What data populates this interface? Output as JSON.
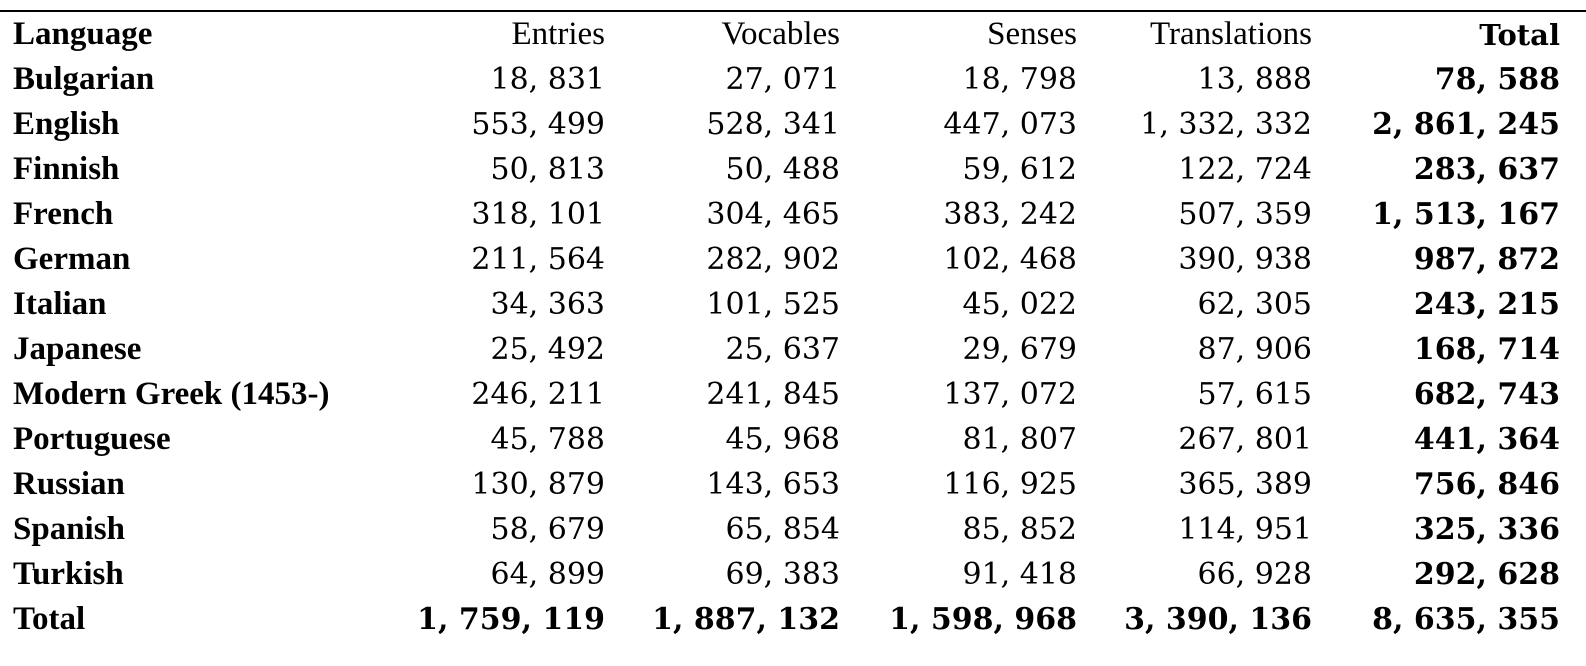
{
  "table": {
    "headers": [
      "Language",
      "Entries",
      "Vocables",
      "Senses",
      "Translations",
      "Total"
    ],
    "rows": [
      {
        "language": "Bulgarian",
        "entries": "18, 831",
        "vocables": "27, 071",
        "senses": "18, 798",
        "translations": "13, 888",
        "total": "78, 588"
      },
      {
        "language": "English",
        "entries": "553, 499",
        "vocables": "528, 341",
        "senses": "447, 073",
        "translations": "1, 332, 332",
        "total": "2, 861, 245"
      },
      {
        "language": "Finnish",
        "entries": "50, 813",
        "vocables": "50, 488",
        "senses": "59, 612",
        "translations": "122, 724",
        "total": "283, 637"
      },
      {
        "language": "French",
        "entries": "318, 101",
        "vocables": "304, 465",
        "senses": "383, 242",
        "translations": "507, 359",
        "total": "1, 513, 167"
      },
      {
        "language": "German",
        "entries": "211, 564",
        "vocables": "282, 902",
        "senses": "102, 468",
        "translations": "390, 938",
        "total": "987, 872"
      },
      {
        "language": "Italian",
        "entries": "34, 363",
        "vocables": "101, 525",
        "senses": "45, 022",
        "translations": "62, 305",
        "total": "243, 215"
      },
      {
        "language": "Japanese",
        "entries": "25, 492",
        "vocables": "25, 637",
        "senses": "29, 679",
        "translations": "87, 906",
        "total": "168, 714"
      },
      {
        "language": "Modern Greek (1453-)",
        "entries": "246, 211",
        "vocables": "241, 845",
        "senses": "137, 072",
        "translations": "57, 615",
        "total": "682, 743"
      },
      {
        "language": "Portuguese",
        "entries": "45, 788",
        "vocables": "45, 968",
        "senses": "81, 807",
        "translations": "267, 801",
        "total": "441, 364"
      },
      {
        "language": "Russian",
        "entries": "130, 879",
        "vocables": "143, 653",
        "senses": "116, 925",
        "translations": "365, 389",
        "total": "756, 846"
      },
      {
        "language": "Spanish",
        "entries": "58, 679",
        "vocables": "65, 854",
        "senses": "85, 852",
        "translations": "114, 951",
        "total": "325, 336"
      },
      {
        "language": "Turkish",
        "entries": "64, 899",
        "vocables": "69, 383",
        "senses": "91, 418",
        "translations": "66, 928",
        "total": "292, 628"
      }
    ],
    "total_row": {
      "language": "Total",
      "entries": "1, 759, 119",
      "vocables": "1, 887, 132",
      "senses": "1, 598, 968",
      "translations": "3, 390, 136",
      "total": "8, 635, 355"
    }
  }
}
